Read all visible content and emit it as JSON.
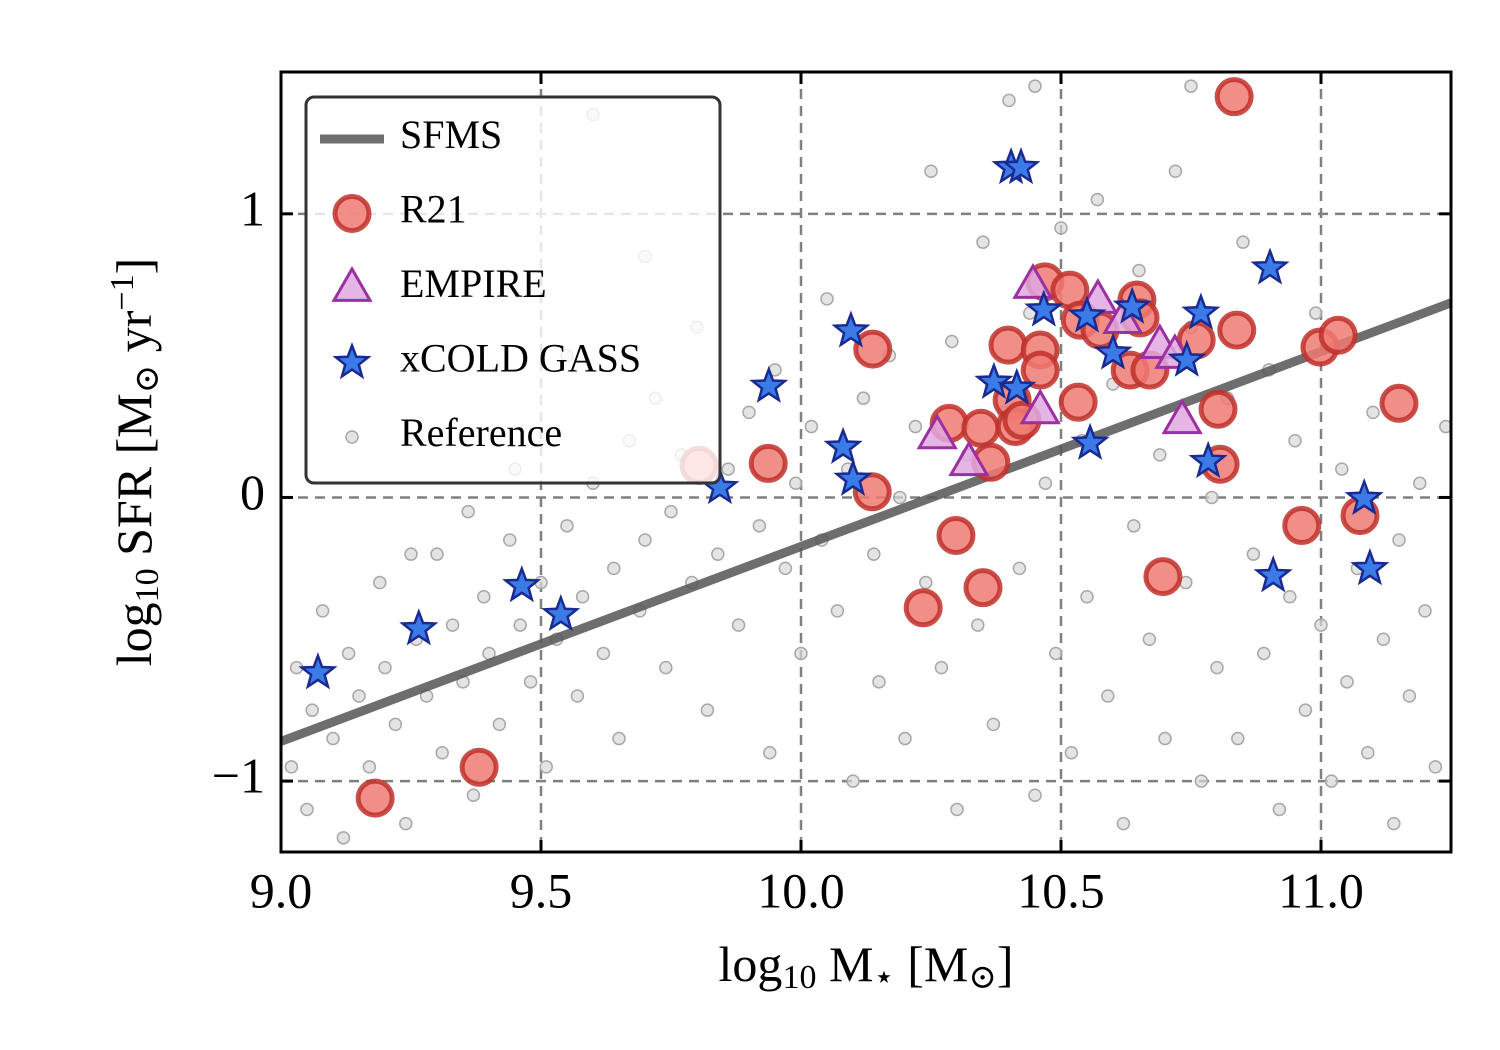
{
  "chart_data": {
    "type": "scatter",
    "x_label": [
      {
        "text": "log",
        "style": "normal"
      },
      {
        "text": "10",
        "style": "sub"
      },
      {
        "text": " M",
        "style": "normal"
      },
      {
        "text": "⋆",
        "style": "sub"
      },
      {
        "text": " [M",
        "style": "normal"
      },
      {
        "text": "⊙",
        "style": "sub"
      },
      {
        "text": "]",
        "style": "normal"
      }
    ],
    "y_label": [
      {
        "text": "log",
        "style": "normal"
      },
      {
        "text": "10",
        "style": "sub"
      },
      {
        "text": " SFR [M",
        "style": "normal"
      },
      {
        "text": "⊙",
        "style": "sub"
      },
      {
        "text": " yr",
        "style": "normal"
      },
      {
        "text": "−1",
        "style": "sup"
      },
      {
        "text": "]",
        "style": "normal"
      }
    ],
    "xlim": [
      9.0,
      11.25
    ],
    "ylim": [
      -1.25,
      1.5
    ],
    "xticks": [
      {
        "value": 9,
        "label": "9.0"
      },
      9.5,
      {
        "value": 10,
        "label": "10.0"
      },
      10.5,
      {
        "value": 11,
        "label": "11.0"
      }
    ],
    "yticks": [
      {
        "value": -1,
        "label": "−1"
      },
      0,
      1
    ],
    "grid": true,
    "legend": "upper left",
    "series": [
      {
        "name": "SFMS",
        "marker": "line",
        "color": "#555555",
        "x": [
          9.0,
          11.25
        ],
        "values": [
          -0.86,
          0.686
        ]
      },
      {
        "name": "R21",
        "marker": "circle",
        "color": "#f07a73",
        "edgecolor": "#c0302b",
        "x": [
          10.833,
          9.804,
          9.937,
          10.138,
          10.137,
          10.298,
          10.235,
          10.35,
          10.285,
          10.346,
          10.365,
          10.406,
          10.398,
          10.412,
          10.46,
          10.46,
          10.469,
          10.517,
          10.533,
          10.537,
          10.575,
          10.633,
          10.671,
          10.646,
          10.652,
          10.696,
          10.76,
          10.802,
          10.806,
          10.838,
          10.963,
          10.998,
          11.033,
          11.075,
          11.15,
          9.181,
          9.381,
          10.425
        ],
        "values": [
          1.413,
          0.113,
          0.12,
          0.523,
          0.02,
          -0.134,
          -0.389,
          -0.318,
          0.261,
          0.244,
          0.124,
          0.343,
          0.537,
          0.25,
          0.52,
          0.449,
          0.76,
          0.731,
          0.336,
          0.625,
          0.59,
          0.449,
          0.449,
          0.696,
          0.633,
          -0.279,
          0.555,
          0.311,
          0.117,
          0.59,
          -0.099,
          0.53,
          0.572,
          -0.064,
          0.332,
          -1.06,
          -0.951,
          0.272
        ]
      },
      {
        "name": "EMPIRE",
        "marker": "triangle",
        "color": "#e0a8e0",
        "edgecolor": "#9b30a0",
        "x": [
          10.262,
          10.323,
          10.446,
          10.46,
          10.571,
          10.619,
          10.69,
          10.719,
          10.733
        ],
        "values": [
          0.219,
          0.124,
          0.749,
          0.307,
          0.696,
          0.625,
          0.537,
          0.502,
          0.272
        ]
      },
      {
        "name": "xCOLD GASS",
        "marker": "star",
        "color": "#3b7be8",
        "edgecolor": "#1a2a90",
        "x": [
          9.071,
          9.265,
          9.463,
          9.538,
          9.844,
          9.938,
          10.096,
          10.081,
          10.1,
          10.404,
          10.423,
          10.371,
          10.415,
          10.467,
          10.55,
          10.556,
          10.6,
          10.637,
          10.742,
          10.769,
          10.783,
          10.902,
          10.908,
          11.083,
          11.094
        ],
        "values": [
          -0.618,
          -0.463,
          -0.311,
          -0.413,
          0.035,
          0.392,
          0.587,
          0.177,
          0.064,
          1.163,
          1.163,
          0.406,
          0.385,
          0.661,
          0.64,
          0.191,
          0.509,
          0.671,
          0.484,
          0.65,
          0.127,
          0.809,
          -0.276,
          -0.004,
          -0.251
        ]
      },
      {
        "name": "Reference",
        "marker": "point",
        "color": "#d9d9d9",
        "edgecolor": "#a8a8a8",
        "x": [
          9.02,
          9.03,
          9.05,
          9.06,
          9.08,
          9.1,
          9.12,
          9.13,
          9.15,
          9.17,
          9.19,
          9.2,
          9.22,
          9.24,
          9.26,
          9.28,
          9.3,
          9.31,
          9.33,
          9.35,
          9.37,
          9.39,
          9.4,
          9.42,
          9.44,
          9.46,
          9.48,
          9.5,
          9.51,
          9.53,
          9.55,
          9.57,
          9.58,
          9.6,
          9.62,
          9.64,
          9.65,
          9.67,
          9.69,
          9.7,
          9.72,
          9.74,
          9.75,
          9.77,
          9.79,
          9.8,
          9.82,
          9.84,
          9.86,
          9.88,
          9.9,
          9.92,
          9.94,
          9.95,
          9.97,
          9.99,
          10.0,
          10.02,
          10.04,
          10.05,
          10.07,
          10.09,
          10.1,
          10.12,
          10.14,
          10.15,
          10.17,
          10.19,
          10.2,
          10.22,
          10.24,
          10.25,
          10.27,
          10.29,
          10.3,
          10.32,
          10.34,
          10.35,
          10.37,
          10.39,
          10.4,
          10.42,
          10.44,
          10.45,
          10.47,
          10.49,
          10.5,
          10.52,
          10.54,
          10.55,
          10.57,
          10.59,
          10.6,
          10.62,
          10.64,
          10.65,
          10.67,
          10.69,
          10.7,
          10.72,
          10.74,
          10.75,
          10.77,
          10.79,
          10.8,
          10.82,
          10.84,
          10.85,
          10.87,
          10.89,
          10.9,
          10.92,
          10.94,
          10.95,
          10.97,
          10.99,
          11.0,
          11.02,
          11.04,
          11.05,
          11.07,
          11.09,
          11.1,
          11.12,
          11.14,
          11.15,
          11.17,
          11.19,
          11.2,
          11.22,
          11.24,
          9.6,
          9.7,
          9.55,
          10.45,
          10.75,
          9.36,
          9.45,
          9.25
        ],
        "values": [
          -0.95,
          -0.6,
          -1.1,
          -0.75,
          -0.4,
          -0.85,
          -1.2,
          -0.55,
          -0.7,
          -0.95,
          -0.3,
          -0.6,
          -0.8,
          -1.15,
          -0.5,
          -0.7,
          -0.2,
          -0.9,
          -0.45,
          -0.65,
          -1.05,
          -0.35,
          -0.55,
          -0.8,
          -0.15,
          -0.45,
          -0.65,
          -0.3,
          -0.95,
          -0.5,
          -0.1,
          -0.7,
          -0.35,
          0.05,
          -0.55,
          -0.25,
          -0.85,
          0.2,
          -0.4,
          -0.15,
          0.35,
          -0.6,
          -0.05,
          0.15,
          -0.3,
          0.6,
          -0.75,
          -0.2,
          0.1,
          -0.45,
          0.3,
          -0.1,
          -0.9,
          0.45,
          -0.25,
          0.05,
          -0.55,
          0.25,
          -0.15,
          0.7,
          -0.4,
          0.1,
          -1.0,
          0.35,
          -0.2,
          -0.65,
          0.5,
          0.0,
          -0.85,
          0.25,
          -0.3,
          1.15,
          -0.6,
          0.55,
          -1.1,
          0.15,
          -0.45,
          0.9,
          -0.8,
          0.3,
          1.4,
          -0.25,
          0.65,
          -1.05,
          0.05,
          -0.55,
          0.95,
          -0.9,
          0.2,
          -0.35,
          1.05,
          -0.7,
          0.4,
          -1.15,
          -0.1,
          0.8,
          -0.5,
          0.15,
          -0.85,
          1.15,
          -0.3,
          0.6,
          -1.0,
          0.0,
          -0.6,
          0.35,
          -0.85,
          0.9,
          -0.2,
          -0.55,
          0.45,
          -1.1,
          -0.35,
          0.2,
          -0.75,
          0.65,
          -0.45,
          -1.0,
          0.1,
          -0.65,
          -0.25,
          -0.9,
          0.3,
          -0.5,
          -1.15,
          -0.15,
          -0.7,
          0.05,
          -0.4,
          -0.95,
          0.25,
          1.35,
          0.85,
          0.5,
          1.45,
          1.45,
          -0.05,
          0.1,
          -0.2
        ]
      }
    ]
  }
}
